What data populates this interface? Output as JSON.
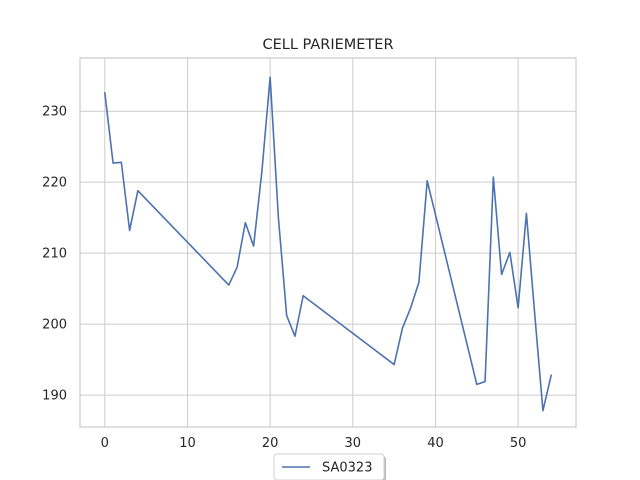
{
  "chart_data": {
    "type": "line",
    "title": "CELL PARIEMETER",
    "xlabel": "",
    "ylabel": "",
    "xlim": [
      -3,
      57
    ],
    "ylim": [
      185.5,
      237.5
    ],
    "xticks": [
      0,
      10,
      20,
      30,
      40,
      50
    ],
    "yticks": [
      190,
      200,
      210,
      220,
      230
    ],
    "grid": true,
    "legend_position": "bottom-center",
    "series": [
      {
        "name": "SA0323",
        "color": "#4c72b0",
        "x": [
          0,
          1,
          2,
          3,
          4,
          15,
          16,
          17,
          18,
          19,
          20,
          21,
          22,
          23,
          24,
          35,
          36,
          37,
          38,
          39,
          45,
          46,
          47,
          48,
          49,
          50,
          51,
          52,
          53,
          54
        ],
        "y": [
          232.6,
          222.7,
          222.8,
          213.2,
          218.8,
          205.5,
          208.0,
          214.3,
          211.0,
          221.5,
          234.8,
          215.0,
          201.2,
          198.3,
          204.0,
          194.3,
          199.4,
          202.3,
          205.9,
          220.2,
          191.5,
          191.9,
          220.7,
          207.0,
          210.1,
          202.3,
          215.6,
          201.5,
          187.8,
          192.8
        ]
      }
    ]
  }
}
